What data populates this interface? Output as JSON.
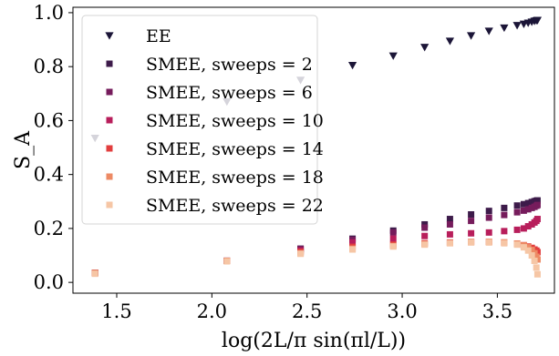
{
  "chart_data": {
    "type": "scatter",
    "xlabel": "log(2L/π sin(πl/L))",
    "ylabel": "S_A",
    "xlim": [
      1.27,
      3.8
    ],
    "ylim": [
      -0.04,
      1.02
    ],
    "x_ticks": [
      1.5,
      2.0,
      2.5,
      3.0,
      3.5
    ],
    "x_tick_labels": [
      "1.5",
      "2.0",
      "2.5",
      "3.0",
      "3.5"
    ],
    "y_ticks": [
      0.0,
      0.2,
      0.4,
      0.6,
      0.8,
      1.0
    ],
    "y_tick_labels": [
      "0.0",
      "0.2",
      "0.4",
      "0.6",
      "0.8",
      "1.0"
    ],
    "grid": false,
    "legend_position": "top-left",
    "x": [
      1.386,
      2.079,
      2.466,
      2.739,
      2.953,
      3.118,
      3.251,
      3.362,
      3.456,
      3.536,
      3.604,
      3.639,
      3.662,
      3.681,
      3.695,
      3.705,
      3.711
    ],
    "series": [
      {
        "name": "EE",
        "marker": "triangle-down",
        "color": "#1b1537",
        "values": [
          0.535,
          0.67,
          0.75,
          0.805,
          0.84,
          0.872,
          0.895,
          0.915,
          0.932,
          0.944,
          0.953,
          0.958,
          0.962,
          0.966,
          0.969,
          0.971,
          0.972
        ]
      },
      {
        "name": "SMEE, sweeps = 2",
        "marker": "square",
        "color": "#3d1b4a",
        "values": [
          0.035,
          0.08,
          0.125,
          0.162,
          0.192,
          0.215,
          0.235,
          0.252,
          0.265,
          0.276,
          0.285,
          0.29,
          0.294,
          0.298,
          0.301,
          0.303,
          0.304
        ]
      },
      {
        "name": "SMEE, sweeps = 6",
        "marker": "square",
        "color": "#761c5c",
        "values": [
          0.035,
          0.08,
          0.124,
          0.158,
          0.185,
          0.203,
          0.215,
          0.228,
          0.24,
          0.25,
          0.26,
          0.266,
          0.271,
          0.276,
          0.28,
          0.284,
          0.287
        ]
      },
      {
        "name": "SMEE, sweeps = 10",
        "marker": "square",
        "color": "#b81e5b",
        "values": [
          0.035,
          0.08,
          0.118,
          0.148,
          0.162,
          0.172,
          0.178,
          0.182,
          0.185,
          0.19,
          0.195,
          0.2,
          0.208,
          0.215,
          0.222,
          0.228,
          0.235
        ]
      },
      {
        "name": "SMEE, sweeps = 14",
        "marker": "square",
        "color": "#e23e3e",
        "values": [
          0.035,
          0.08,
          0.113,
          0.132,
          0.14,
          0.145,
          0.148,
          0.15,
          0.15,
          0.148,
          0.143,
          0.138,
          0.133,
          0.128,
          0.122,
          0.118,
          0.112
        ]
      },
      {
        "name": "SMEE, sweeps = 18",
        "marker": "square",
        "color": "#ed8a64",
        "values": [
          0.035,
          0.08,
          0.108,
          0.125,
          0.135,
          0.142,
          0.146,
          0.149,
          0.15,
          0.148,
          0.144,
          0.137,
          0.13,
          0.12,
          0.108,
          0.095,
          0.085
        ]
      },
      {
        "name": "SMEE, sweeps = 22",
        "marker": "square",
        "color": "#f6c6a5",
        "values": [
          0.032,
          0.078,
          0.106,
          0.122,
          0.133,
          0.14,
          0.145,
          0.148,
          0.148,
          0.145,
          0.14,
          0.13,
          0.118,
          0.1,
          0.08,
          0.055,
          0.03
        ]
      }
    ]
  }
}
